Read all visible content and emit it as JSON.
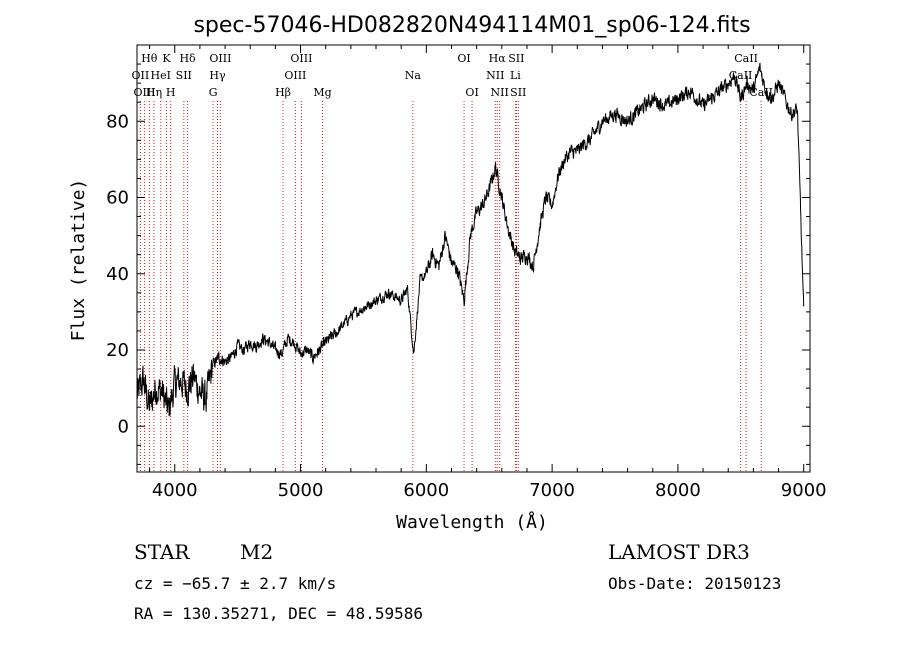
{
  "chart_data": {
    "type": "line",
    "title": "spec-57046-HD082820N494114M01_sp06-124.fits",
    "xlabel": "Wavelength (Å)",
    "ylabel": "Flux (relative)",
    "xlim": [
      3700,
      9050
    ],
    "ylim": [
      -12,
      100
    ],
    "xticks": [
      4000,
      5000,
      6000,
      7000,
      8000,
      9000
    ],
    "yticks": [
      0,
      20,
      40,
      60,
      80
    ],
    "series": [
      {
        "name": "flux",
        "x": [
          3700,
          3750,
          3800,
          3850,
          3900,
          3950,
          4000,
          4050,
          4100,
          4150,
          4200,
          4250,
          4300,
          4350,
          4400,
          4450,
          4500,
          4550,
          4600,
          4650,
          4700,
          4750,
          4800,
          4850,
          4900,
          4950,
          5000,
          5050,
          5100,
          5150,
          5200,
          5300,
          5400,
          5500,
          5600,
          5700,
          5800,
          5850,
          5900,
          5950,
          6000,
          6050,
          6100,
          6150,
          6200,
          6250,
          6300,
          6350,
          6400,
          6450,
          6500,
          6550,
          6600,
          6650,
          6700,
          6750,
          6800,
          6850,
          6900,
          6950,
          7000,
          7050,
          7100,
          7150,
          7200,
          7250,
          7300,
          7400,
          7500,
          7600,
          7700,
          7800,
          7900,
          8000,
          8100,
          8200,
          8300,
          8400,
          8450,
          8500,
          8550,
          8600,
          8650,
          8700,
          8750,
          8800,
          8850,
          8900,
          8950,
          9000
        ],
        "y": [
          8,
          12,
          5,
          10,
          9,
          4,
          11,
          12,
          10,
          13,
          9,
          7,
          16,
          18,
          17,
          18,
          21,
          20,
          22,
          21,
          23,
          22,
          20,
          19,
          23,
          22,
          19,
          20,
          18,
          20,
          22,
          25,
          29,
          31,
          33,
          35,
          33,
          36,
          19,
          38,
          40,
          45,
          42,
          50,
          43,
          41,
          33,
          50,
          56,
          58,
          62,
          68,
          60,
          52,
          46,
          44,
          45,
          42,
          52,
          60,
          58,
          66,
          70,
          72,
          72,
          74,
          75,
          80,
          82,
          80,
          83,
          86,
          84,
          86,
          88,
          84,
          87,
          90,
          92,
          86,
          90,
          88,
          94,
          88,
          86,
          90,
          86,
          82,
          83,
          30
        ]
      }
    ],
    "lines": [
      {
        "label": "Hθ",
        "wl": 3798,
        "row": 1
      },
      {
        "label": "K",
        "wl": 3934,
        "row": 1
      },
      {
        "label": "Hδ",
        "wl": 4102,
        "row": 1
      },
      {
        "label": "OIII",
        "wl": 4363,
        "row": 1
      },
      {
        "label": "OIII",
        "wl": 5007,
        "row": 1
      },
      {
        "label": "OI",
        "wl": 6300,
        "row": 1
      },
      {
        "label": "Hα",
        "wl": 6563,
        "row": 1
      },
      {
        "label": "SII",
        "wl": 6716,
        "row": 1
      },
      {
        "label": "CaII",
        "wl": 8542,
        "row": 1
      },
      {
        "label": "OII",
        "wl": 3727,
        "row": 2
      },
      {
        "label": "HeI",
        "wl": 3889,
        "row": 2
      },
      {
        "label": "SII",
        "wl": 4072,
        "row": 2
      },
      {
        "label": "Hγ",
        "wl": 4340,
        "row": 2
      },
      {
        "label": "OIII",
        "wl": 4959,
        "row": 2
      },
      {
        "label": "Na",
        "wl": 5893,
        "row": 2
      },
      {
        "label": "NII",
        "wl": 6548,
        "row": 2
      },
      {
        "label": "Li",
        "wl": 6708,
        "row": 2
      },
      {
        "label": "CaII",
        "wl": 8498,
        "row": 2
      },
      {
        "label": "OIII",
        "wl": 3760,
        "row": 3
      },
      {
        "label": "Hη",
        "wl": 3835,
        "row": 3
      },
      {
        "label": "H",
        "wl": 3968,
        "row": 3
      },
      {
        "label": "G",
        "wl": 4305,
        "row": 3
      },
      {
        "label": "Hβ",
        "wl": 4861,
        "row": 3
      },
      {
        "label": "Mg",
        "wl": 5175,
        "row": 3
      },
      {
        "label": "OI",
        "wl": 6364,
        "row": 3
      },
      {
        "label": "NII",
        "wl": 6583,
        "row": 3
      },
      {
        "label": "SII",
        "wl": 6731,
        "row": 3
      },
      {
        "label": "CaII",
        "wl": 8662,
        "row": 3
      }
    ]
  },
  "info": {
    "object_class": "STAR",
    "subclass": "M2",
    "survey": "LAMOST DR3",
    "cz": "cz = −65.7 ± 2.7 km/s",
    "obs_date": "Obs-Date: 20150123",
    "coords": "RA = 130.35271, DEC =  48.59586"
  }
}
